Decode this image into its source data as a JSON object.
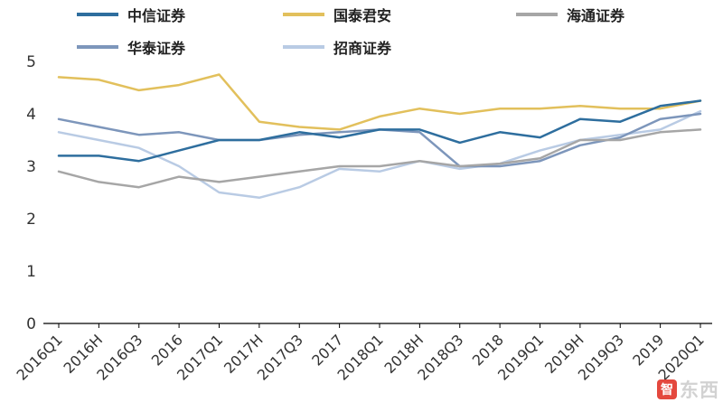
{
  "watermark": {
    "icon_char": "智",
    "suffix": "东西"
  },
  "chart_data": {
    "type": "line",
    "title": "",
    "xlabel": "",
    "ylabel": "",
    "grid": false,
    "legend_position": "top-left",
    "ylim": [
      0,
      5
    ],
    "yticks": [
      0,
      1,
      2,
      3,
      4,
      5
    ],
    "categories": [
      "2016Q1",
      "2016H",
      "2016Q3",
      "2016",
      "2017Q1",
      "2017H",
      "2017Q3",
      "2017",
      "2018Q1",
      "2018H",
      "2018Q3",
      "2018",
      "2019Q1",
      "2019H",
      "2019Q3",
      "2019",
      "2020Q1"
    ],
    "series": [
      {
        "name": "中信证券",
        "color": "#2e6e9e",
        "values": [
          3.2,
          3.2,
          3.1,
          3.3,
          3.5,
          3.5,
          3.65,
          3.55,
          3.7,
          3.7,
          3.45,
          3.65,
          3.55,
          3.9,
          3.85,
          4.15,
          4.25
        ]
      },
      {
        "name": "国泰君安",
        "color": "#e2c05c",
        "values": [
          4.7,
          4.65,
          4.45,
          4.55,
          4.75,
          3.85,
          3.75,
          3.7,
          3.95,
          4.1,
          4.0,
          4.1,
          4.1,
          4.15,
          4.1,
          4.1,
          4.25
        ]
      },
      {
        "name": "海通证券",
        "color": "#a6a6a6",
        "values": [
          2.9,
          2.7,
          2.6,
          2.8,
          2.7,
          2.8,
          2.9,
          3.0,
          3.0,
          3.1,
          3.0,
          3.05,
          3.15,
          3.5,
          3.5,
          3.65,
          3.7
        ]
      },
      {
        "name": "华泰证券",
        "color": "#7d96bb",
        "values": [
          3.9,
          3.75,
          3.6,
          3.65,
          3.5,
          3.5,
          3.6,
          3.65,
          3.7,
          3.65,
          3.0,
          3.0,
          3.1,
          3.4,
          3.55,
          3.9,
          4.0
        ]
      },
      {
        "name": "招商证券",
        "color": "#b9cbe4",
        "values": [
          3.65,
          3.5,
          3.35,
          3.0,
          2.5,
          2.4,
          2.6,
          2.95,
          2.9,
          3.1,
          2.95,
          3.05,
          3.3,
          3.5,
          3.6,
          3.7,
          4.05
        ]
      }
    ]
  }
}
